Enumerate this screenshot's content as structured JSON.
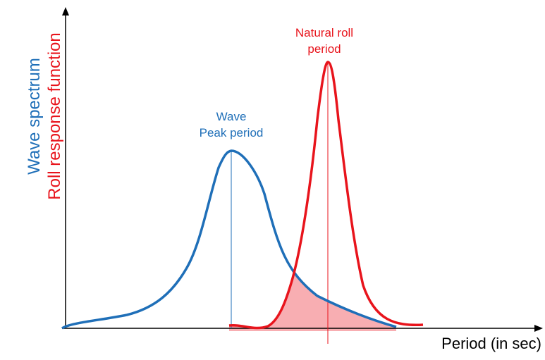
{
  "axes": {
    "y_label_line1": "Wave spectrum",
    "y_label_line2": "Roll response function",
    "x_label": "Period (in sec)"
  },
  "annotations": {
    "wave_peak_line1": "Wave",
    "wave_peak_line2": "Peak period",
    "roll_line1": "Natural roll",
    "roll_line2": "period"
  },
  "colors": {
    "wave": "#1f6fb8",
    "roll": "#e8141c",
    "overlap_fill": "#f7a0a4",
    "axis": "#000000"
  }
}
